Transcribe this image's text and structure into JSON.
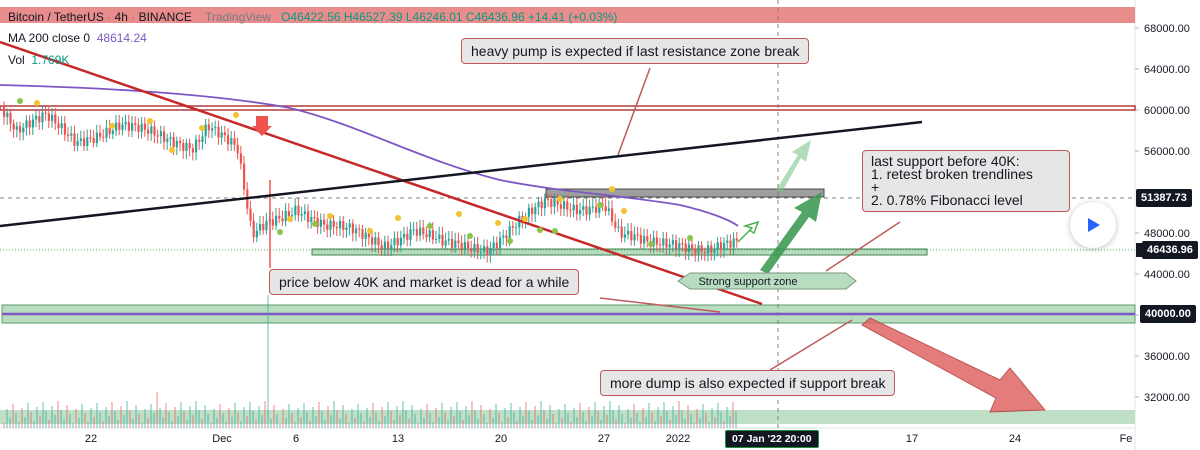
{
  "header": {
    "symbol": "Bitcoin / TetherUS",
    "interval": "4h",
    "exchange": "BINANCE",
    "platform": "TradingView",
    "ohlc": "O46422.56 H46527.39 L46246.01 C46436.96 +14.41 (+0.03%)"
  },
  "indicators": {
    "ma_label": "MA 200 close 0",
    "ma_value": "48614.24",
    "vol_label": "Vol",
    "vol_value": "1.769K"
  },
  "annotations": {
    "pump": "heavy pump is expected if last resistance zone break",
    "dead_market": "price below 40K and market is dead for a while",
    "last_support": "last support before 40K:\n1. retest broken trendlines\n+\n2. 0.78% Fibonacci level",
    "dump": "more dump is also expected if support break",
    "support_zone": "Strong support zone"
  },
  "price_tags": {
    "resistance": "51387.73",
    "last_price": "46436.96",
    "level_40k": "40000.00"
  },
  "crosshair_date": "07 Jan '22  20:00",
  "colors": {
    "up": "#26a69a",
    "down": "#ef5350",
    "ma": "#7e57c2",
    "zone_red": "#e06666",
    "zone_green": "#b8dcc0",
    "callout_border": "#c05a5a"
  },
  "chart_data": {
    "type": "candlestick",
    "symbol": "Bitcoin / TetherUS",
    "interval": "4h",
    "y_ticks": [
      68000,
      64000,
      60000,
      56000,
      48000,
      44000,
      40000,
      36000,
      32000
    ],
    "x_ticks": [
      "22",
      "Dec",
      "6",
      "13",
      "20",
      "27",
      "2022",
      "17",
      "24",
      "Fe"
    ],
    "close_path": [
      [
        "Nov 17",
        60400
      ],
      [
        "Nov 18",
        58000
      ],
      [
        "Nov 20",
        59200
      ],
      [
        "Nov 22",
        57000
      ],
      [
        "Nov 25",
        58500
      ],
      [
        "Nov 28",
        57200
      ],
      [
        "Nov 30",
        56600
      ],
      [
        "Dec 1",
        58700
      ],
      [
        "Dec 2",
        57400
      ],
      [
        "Dec 3",
        56000
      ],
      [
        "Dec 4",
        47500
      ],
      [
        "Dec 5",
        49000
      ],
      [
        "Dec 7",
        50600
      ],
      [
        "Dec 9",
        48500
      ],
      [
        "Dec 11",
        48100
      ],
      [
        "Dec 13",
        47000
      ],
      [
        "Dec 15",
        48300
      ],
      [
        "Dec 17",
        46800
      ],
      [
        "Dec 20",
        46600
      ],
      [
        "Dec 22",
        48900
      ],
      [
        "Dec 24",
        50800
      ],
      [
        "Dec 26",
        50500
      ],
      [
        "Dec 28",
        50900
      ],
      [
        "Dec 29",
        47800
      ],
      [
        "Dec 31",
        46800
      ],
      [
        "Jan 2",
        47200
      ],
      [
        "Jan 4",
        46400
      ],
      [
        "Jan 6",
        46800
      ],
      [
        "Jan 7",
        46436.96
      ]
    ],
    "ma200_value": 48614.24,
    "levels": {
      "resistance": 51387.73,
      "last_close": 46436.96,
      "support": 40000
    }
  }
}
